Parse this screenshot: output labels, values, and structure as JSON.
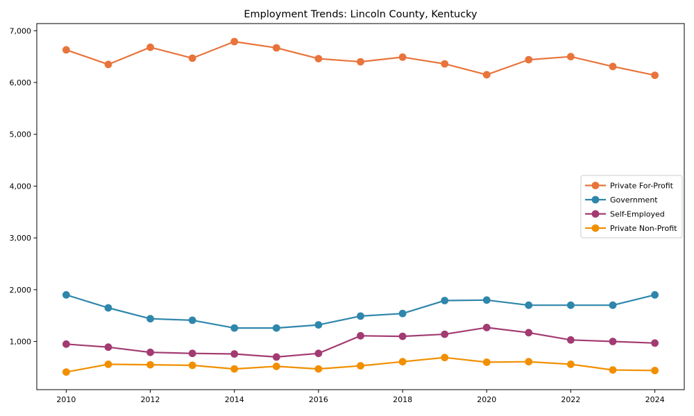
{
  "figure": {
    "background_color": "#ffffff",
    "axes_edge_color": "#000000",
    "legend_border_color": "#cccccc"
  },
  "chart_data": {
    "type": "line",
    "title": "Employment Trends: Lincoln County, Kentucky",
    "xlabel": "",
    "ylabel": "",
    "grid": false,
    "legend_position": "center right",
    "x": [
      2010,
      2011,
      2012,
      2013,
      2014,
      2015,
      2016,
      2017,
      2018,
      2019,
      2020,
      2021,
      2022,
      2023,
      2024
    ],
    "series": [
      {
        "id": "private-for-profit",
        "name": "Private For-Profit",
        "color": "#E8743B",
        "marker": "circle",
        "values": [
          6630,
          6350,
          6680,
          6470,
          6790,
          6670,
          6460,
          6400,
          6490,
          6360,
          6150,
          6440,
          6500,
          6310,
          6140
        ]
      },
      {
        "id": "government",
        "name": "Government",
        "color": "#2E86AB",
        "marker": "circle",
        "values": [
          1900,
          1650,
          1440,
          1410,
          1260,
          1260,
          1320,
          1490,
          1540,
          1790,
          1800,
          1700,
          1700,
          1700,
          1900
        ]
      },
      {
        "id": "self-employed",
        "name": "Self-Employed",
        "color": "#A23B72",
        "marker": "circle",
        "values": [
          950,
          890,
          790,
          770,
          760,
          700,
          770,
          1110,
          1100,
          1140,
          1270,
          1170,
          1030,
          1000,
          970
        ]
      },
      {
        "id": "private-non-profit",
        "name": "Private Non-Profit",
        "color": "#F18F01",
        "marker": "circle",
        "values": [
          410,
          560,
          550,
          540,
          470,
          520,
          470,
          530,
          610,
          690,
          600,
          610,
          560,
          450,
          440
        ]
      }
    ],
    "xticks": [
      2010,
      2012,
      2014,
      2016,
      2018,
      2020,
      2022,
      2024
    ],
    "yticks": [
      {
        "value": 1000,
        "label": "1,000"
      },
      {
        "value": 2000,
        "label": "2,000"
      },
      {
        "value": 3000,
        "label": "3,000"
      },
      {
        "value": 4000,
        "label": "4,000"
      },
      {
        "value": 5000,
        "label": "5,000"
      },
      {
        "value": 6000,
        "label": "6,000"
      },
      {
        "value": 7000,
        "label": "7,000"
      }
    ],
    "xlim": [
      2009.3,
      2024.7
    ],
    "ylim": [
      70,
      7138
    ]
  }
}
